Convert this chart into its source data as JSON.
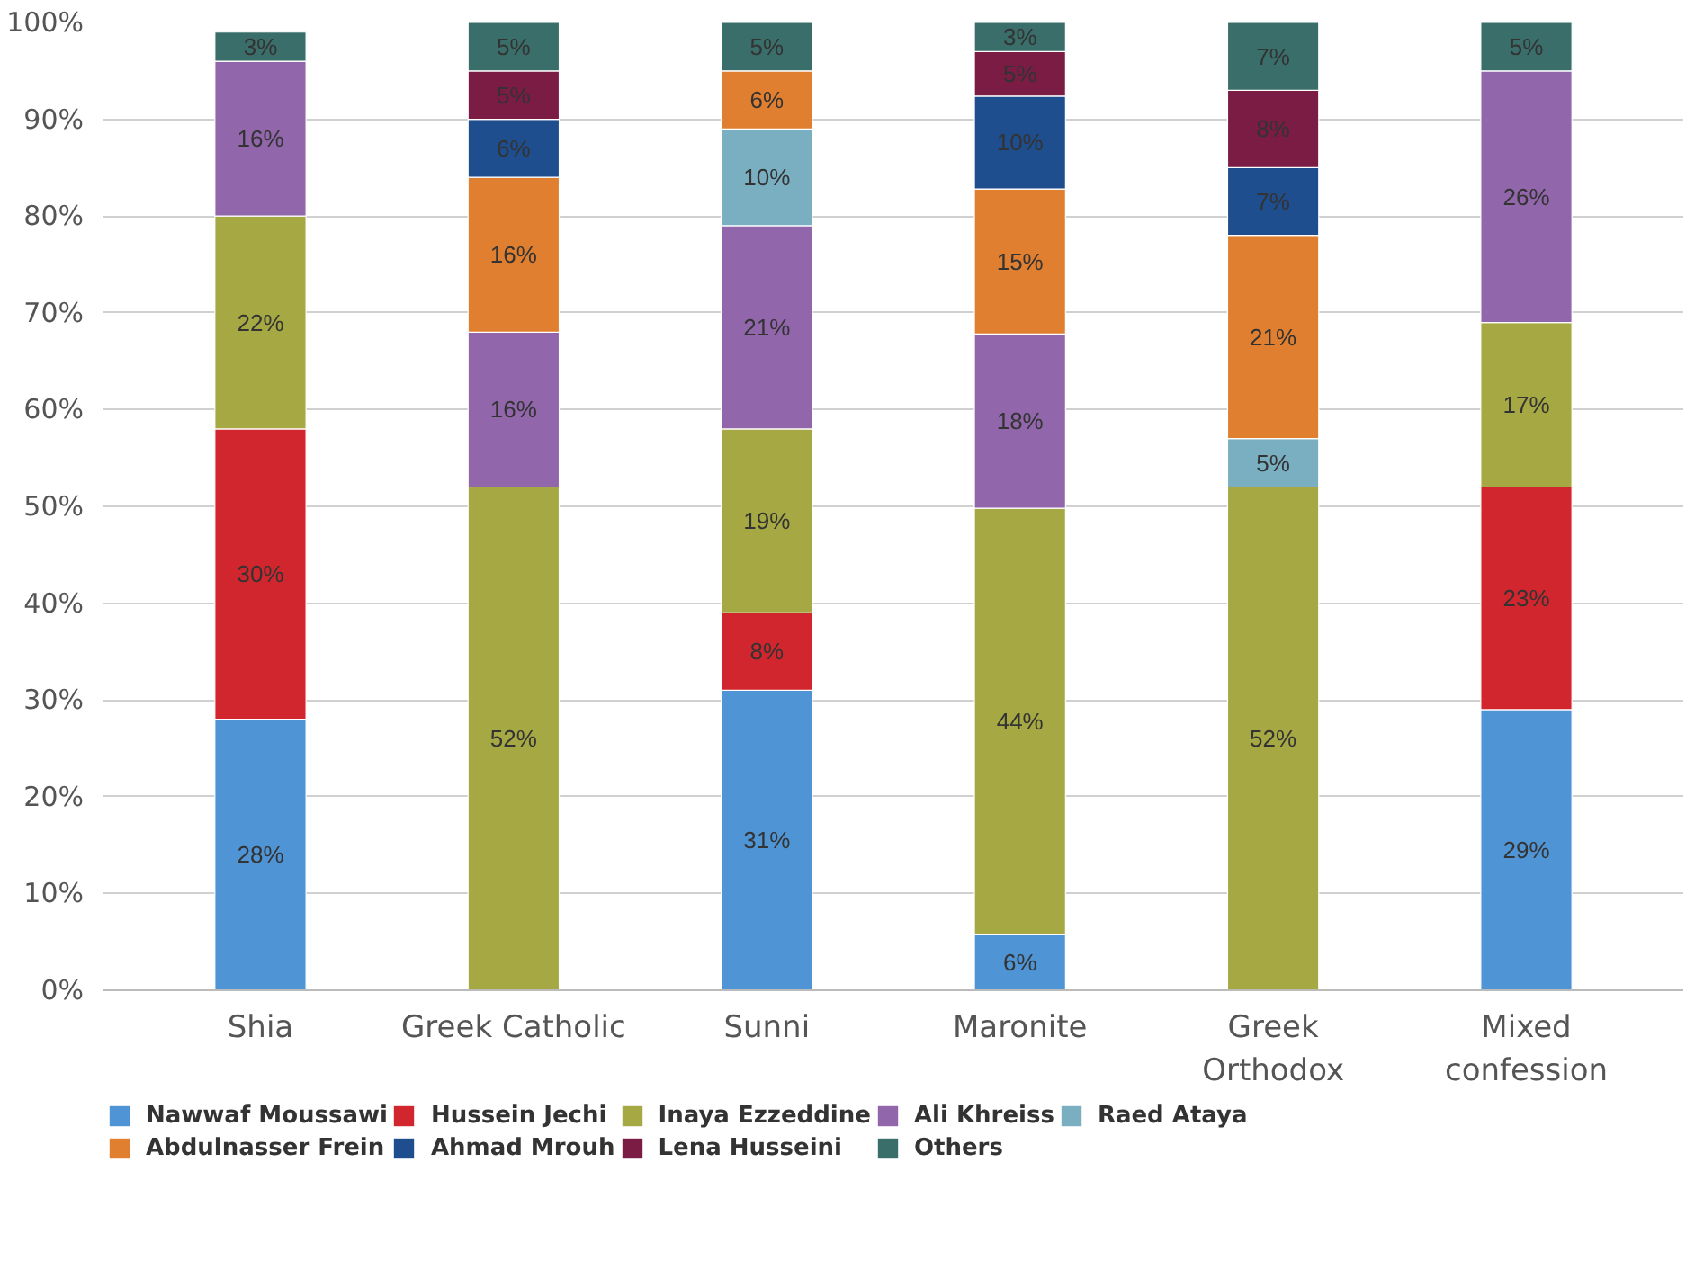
{
  "chart_data": {
    "type": "bar",
    "stacked": true,
    "categories": [
      "Shia",
      "Greek Catholic",
      "Sunni",
      "Maronite",
      "Greek\nOrthodox",
      "Mixed\nconfession"
    ],
    "ylim": [
      0,
      100
    ],
    "yticks": [
      {
        "value": 0,
        "label": "0%"
      },
      {
        "value": 10,
        "label": "10%"
      },
      {
        "value": 20,
        "label": "20%"
      },
      {
        "value": 30,
        "label": "30%"
      },
      {
        "value": 40,
        "label": "40%"
      },
      {
        "value": 50,
        "label": "50%"
      },
      {
        "value": 60,
        "label": "60%"
      },
      {
        "value": 70,
        "label": "70%"
      },
      {
        "value": 80,
        "label": "80%"
      },
      {
        "value": 90,
        "label": "90%"
      },
      {
        "value": 100,
        "label": "100%"
      }
    ],
    "grid": "y",
    "legend": "bottom",
    "series": [
      {
        "name": "Nawwaf Moussawi",
        "color": "#4f94d4",
        "values": [
          28,
          null,
          31,
          5.8,
          null,
          29
        ],
        "value_labels": [
          "28%",
          null,
          "31%",
          "6%",
          null,
          "29%"
        ]
      },
      {
        "name": "Hussein Jechi",
        "color": "#d2262e",
        "values": [
          30,
          null,
          8,
          null,
          null,
          23
        ],
        "value_labels": [
          "30%",
          null,
          "8%",
          null,
          null,
          "23%"
        ]
      },
      {
        "name": "Inaya Ezzeddine",
        "color": "#a5a843",
        "values": [
          22,
          52,
          19,
          44,
          52,
          17
        ],
        "value_labels": [
          "22%",
          "52%",
          "19%",
          "44%",
          "52%",
          "17%"
        ]
      },
      {
        "name": "Ali Khreiss",
        "color": "#9166ab",
        "values": [
          16,
          16,
          21,
          18,
          null,
          26
        ],
        "value_labels": [
          "16%",
          "16%",
          "21%",
          "18%",
          null,
          "26%"
        ]
      },
      {
        "name": "Raed Ataya",
        "color": "#7aafc2",
        "values": [
          null,
          null,
          10,
          null,
          5,
          null
        ],
        "value_labels": [
          null,
          null,
          "10%",
          null,
          "5%",
          null
        ]
      },
      {
        "name": "Abdulnasser Frein",
        "color": "#e07f2f",
        "values": [
          null,
          16,
          6,
          15,
          21,
          null
        ],
        "value_labels": [
          null,
          "16%",
          "6%",
          "15%",
          "21%",
          null
        ]
      },
      {
        "name": "Ahmad Mrouh",
        "color": "#1f4e8e",
        "values": [
          null,
          6,
          null,
          9.6,
          7,
          null
        ],
        "value_labels": [
          null,
          "6%",
          null,
          "10%",
          "7%",
          null
        ]
      },
      {
        "name": "Lena Husseini",
        "color": "#7a1c44",
        "values": [
          null,
          5,
          null,
          4.6,
          8,
          null
        ],
        "value_labels": [
          null,
          "5%",
          null,
          "5%",
          "8%",
          null
        ]
      },
      {
        "name": "Others",
        "color": "#3a6e6a",
        "values": [
          3,
          5,
          5,
          3,
          7,
          5
        ],
        "value_labels": [
          "3%",
          "5%",
          "5%",
          "3%",
          "7%",
          "5%"
        ]
      }
    ]
  }
}
